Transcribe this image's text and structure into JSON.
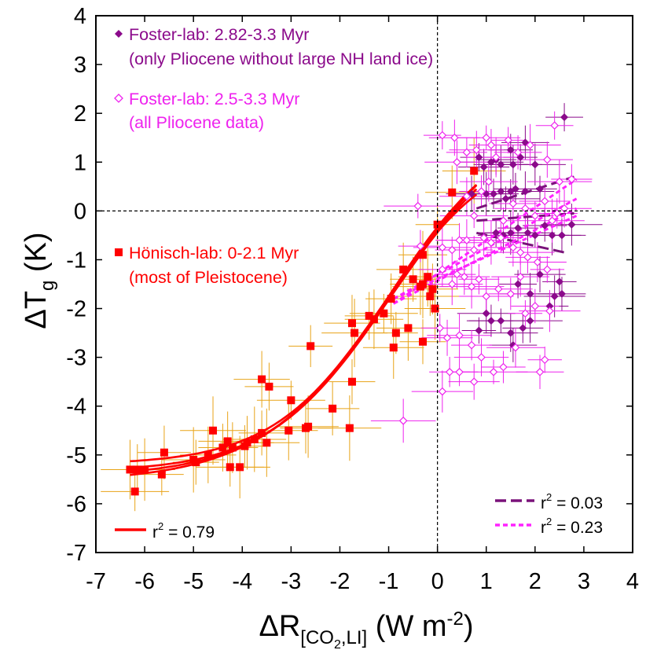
{
  "chart_data": {
    "type": "scatter",
    "title": "",
    "xlabel": {
      "base": "ΔR",
      "sub_a": "[CO",
      "sub_b": "2",
      "sub_c": ",LI]",
      "rest": " (W m",
      "exp": "-2",
      "close": ")"
    },
    "ylabel": {
      "base": "ΔT",
      "sub": "g",
      "rest": " (K)"
    },
    "xlim": [
      -7,
      4
    ],
    "ylim": [
      -7,
      4
    ],
    "x_ticks": [
      "-7",
      "-6",
      "-5",
      "-4",
      "-3",
      "-2",
      "-1",
      "0",
      "1",
      "2",
      "3",
      "4"
    ],
    "y_ticks": [
      "4",
      "3",
      "2",
      "1",
      "0",
      "-1",
      "-2",
      "-3",
      "-4",
      "-5",
      "-6",
      "-7"
    ],
    "colors": {
      "foster_filled": "#8b0a8b",
      "foster_open": "#ee22ee",
      "honisch": "#ff0000",
      "honisch_err": "#e8a317",
      "fit_dark": "#7a127a",
      "fit_magenta": "#ff22ff"
    },
    "legend": [
      {
        "marker": "filled-diamond",
        "line1": "Foster-lab: 2.82-3.3 Myr",
        "line2": "(only Pliocene without large NH land ice)"
      },
      {
        "marker": "open-diamond",
        "line1": "Foster-lab: 2.5-3.3 Myr",
        "line2": "(all Pliocene data)"
      },
      {
        "marker": "filled-square",
        "line1": "Hönisch-lab: 0-2.1 Myr",
        "line2": "(most of Pleistocene)"
      }
    ],
    "fit_stats": [
      {
        "style": "solid-red",
        "label": "r",
        "exp": "2",
        "value": " = 0.79"
      },
      {
        "style": "dashed-purple",
        "label": "r",
        "exp": "2",
        "value": " = 0.03"
      },
      {
        "style": "dashed-magenta",
        "label": "r",
        "exp": "2",
        "value": " = 0.23"
      }
    ],
    "series": [
      {
        "marker": "filled-square",
        "points": [
          [
            -6.3,
            -5.3
          ],
          [
            -6.2,
            -5.75
          ],
          [
            -6.15,
            -5.3
          ],
          [
            -6.0,
            -5.3
          ],
          [
            -5.65,
            -5.4
          ],
          [
            -5.6,
            -4.95
          ],
          [
            -5.0,
            -5.1
          ],
          [
            -4.95,
            -5.15
          ],
          [
            -4.7,
            -5.0
          ],
          [
            -4.6,
            -4.5
          ],
          [
            -4.4,
            -4.85
          ],
          [
            -4.3,
            -4.72
          ],
          [
            -4.25,
            -5.25
          ],
          [
            -4.2,
            -4.85
          ],
          [
            -4.05,
            -5.25
          ],
          [
            -3.95,
            -4.82
          ],
          [
            -3.9,
            -4.75
          ],
          [
            -3.75,
            -4.68
          ],
          [
            -3.6,
            -4.55
          ],
          [
            -3.6,
            -3.45
          ],
          [
            -3.5,
            -4.75
          ],
          [
            -3.45,
            -3.6
          ],
          [
            -3.05,
            -4.5
          ],
          [
            -3.0,
            -3.88
          ],
          [
            -2.7,
            -4.45
          ],
          [
            -2.65,
            -4.42
          ],
          [
            -2.6,
            -2.77
          ],
          [
            -2.15,
            -4.05
          ],
          [
            -1.8,
            -4.45
          ],
          [
            -1.75,
            -3.5
          ],
          [
            -1.75,
            -2.3
          ],
          [
            -1.7,
            -2.5
          ],
          [
            -1.4,
            -2.15
          ],
          [
            -1.3,
            -2.22
          ],
          [
            -1.1,
            -2.1
          ],
          [
            -0.95,
            -1.8
          ],
          [
            -0.9,
            -2.8
          ],
          [
            -0.85,
            -2.5
          ],
          [
            -0.7,
            -1.2
          ],
          [
            -0.6,
            -2.4
          ],
          [
            -0.5,
            -1.4
          ],
          [
            -0.35,
            -1.55
          ],
          [
            -0.3,
            -1.5
          ],
          [
            -0.3,
            -0.9
          ],
          [
            -0.2,
            -1.35
          ],
          [
            -0.15,
            -1.75
          ],
          [
            -0.1,
            -1.6
          ],
          [
            -0.05,
            -2.0
          ],
          [
            0.0,
            -0.28
          ],
          [
            0.3,
            0.38
          ],
          [
            0.75,
            0.82
          ],
          [
            -0.3,
            -2.68
          ]
        ]
      },
      {
        "marker": "filled-diamond",
        "points": [
          [
            0.85,
            1.1
          ],
          [
            0.95,
            0.9
          ],
          [
            1.1,
            1.0
          ],
          [
            1.2,
            1.05
          ],
          [
            1.3,
            0.95
          ],
          [
            1.4,
            0.25
          ],
          [
            1.5,
            1.25
          ],
          [
            1.55,
            0.95
          ],
          [
            1.7,
            1.1
          ],
          [
            1.8,
            1.4
          ],
          [
            2.0,
            0.95
          ],
          [
            2.6,
            1.92
          ],
          [
            0.7,
            0.35
          ],
          [
            1.0,
            0.35
          ],
          [
            1.15,
            0.35
          ],
          [
            1.3,
            0.4
          ],
          [
            1.5,
            0.4
          ],
          [
            1.6,
            0.45
          ],
          [
            1.8,
            0.4
          ],
          [
            2.1,
            0.45
          ],
          [
            2.55,
            -0.5
          ],
          [
            2.75,
            -0.28
          ],
          [
            1.2,
            -0.45
          ],
          [
            1.35,
            -0.5
          ],
          [
            1.5,
            -0.45
          ],
          [
            1.65,
            -0.35
          ],
          [
            1.85,
            -0.45
          ],
          [
            2.0,
            -0.5
          ],
          [
            2.2,
            -0.3
          ],
          [
            2.35,
            -0.5
          ],
          [
            2.5,
            -1.45
          ],
          [
            2.55,
            -1.7
          ],
          [
            2.4,
            -1.75
          ],
          [
            2.3,
            -1.95
          ],
          [
            2.1,
            -1.3
          ],
          [
            1.9,
            -2.25
          ],
          [
            1.75,
            -2.4
          ],
          [
            1.5,
            -2.5
          ],
          [
            1.3,
            -2.25
          ],
          [
            1.1,
            -2.25
          ],
          [
            1.0,
            -2.1
          ],
          [
            0.85,
            -2.45
          ],
          [
            1.55,
            -2.75
          ],
          [
            1.9,
            -1.7
          ],
          [
            1.65,
            -1.5
          ]
        ]
      },
      {
        "marker": "open-diamond",
        "points": [
          [
            0.1,
            1.55
          ],
          [
            0.35,
            1.5
          ],
          [
            0.4,
            1.0
          ],
          [
            0.6,
            1.2
          ],
          [
            0.8,
            1.25
          ],
          [
            1.0,
            1.5
          ],
          [
            1.1,
            1.35
          ],
          [
            1.2,
            1.1
          ],
          [
            1.45,
            1.45
          ],
          [
            1.65,
            1.2
          ],
          [
            1.9,
            1.35
          ],
          [
            2.4,
            1.75
          ],
          [
            2.25,
            1.05
          ],
          [
            2.5,
            0.6
          ],
          [
            2.75,
            0.65
          ],
          [
            0.6,
            0.3
          ],
          [
            0.75,
            -0.1
          ],
          [
            0.9,
            0.4
          ],
          [
            1.05,
            0.6
          ],
          [
            1.35,
            -0.2
          ],
          [
            1.55,
            0.15
          ],
          [
            1.8,
            0.05
          ],
          [
            2.0,
            -0.1
          ],
          [
            2.2,
            0.2
          ],
          [
            2.35,
            -0.2
          ],
          [
            2.45,
            -0.05
          ],
          [
            2.6,
            0.05
          ],
          [
            -0.4,
            0.1
          ],
          [
            -0.35,
            -0.72
          ],
          [
            0.1,
            -0.75
          ],
          [
            0.3,
            -0.8
          ],
          [
            0.45,
            -0.6
          ],
          [
            0.6,
            -0.6
          ],
          [
            0.75,
            -0.8
          ],
          [
            0.95,
            -0.55
          ],
          [
            1.1,
            -0.65
          ],
          [
            1.3,
            -0.55
          ],
          [
            1.55,
            -0.75
          ],
          [
            1.7,
            -0.85
          ],
          [
            1.85,
            -0.95
          ],
          [
            2.05,
            -1.05
          ],
          [
            2.25,
            -1.2
          ],
          [
            0.1,
            -1.2
          ],
          [
            0.3,
            -1.5
          ],
          [
            0.4,
            -1.3
          ],
          [
            0.55,
            -1.35
          ],
          [
            0.7,
            -1.55
          ],
          [
            0.85,
            -1.4
          ],
          [
            1.0,
            -1.75
          ],
          [
            1.25,
            -1.6
          ],
          [
            1.5,
            -1.7
          ],
          [
            1.7,
            -1.35
          ],
          [
            1.8,
            -2.1
          ],
          [
            2.0,
            -1.95
          ],
          [
            2.3,
            -2.05
          ],
          [
            0.05,
            -2.4
          ],
          [
            0.2,
            -2.6
          ],
          [
            0.45,
            -2.55
          ],
          [
            0.7,
            -2.75
          ],
          [
            0.9,
            -3.0
          ],
          [
            1.15,
            -3.3
          ],
          [
            1.35,
            -3.2
          ],
          [
            1.6,
            -2.8
          ],
          [
            2.2,
            -3.05
          ],
          [
            2.1,
            -3.3
          ],
          [
            0.1,
            -3.7
          ],
          [
            0.45,
            -3.3
          ],
          [
            0.75,
            -3.5
          ],
          [
            -0.7,
            -4.3
          ],
          [
            0.25,
            -3.3
          ]
        ]
      }
    ]
  }
}
